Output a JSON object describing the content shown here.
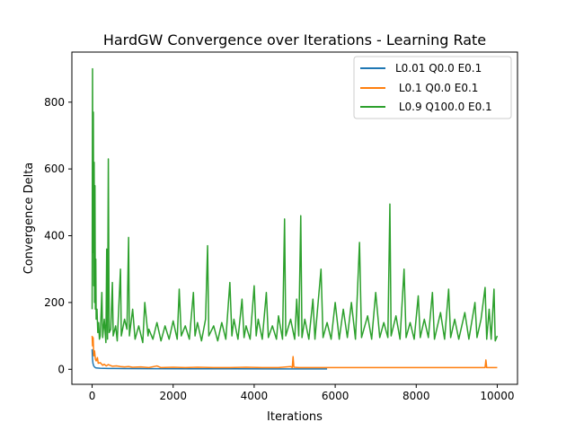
{
  "chart_data": {
    "type": "line",
    "title": "HardGW Convergence over Iterations - Learning Rate",
    "xlabel": "Iterations",
    "ylabel": "Convergence Delta",
    "xlim": [
      -500,
      10500
    ],
    "ylim": [
      -45,
      950
    ],
    "xticks": [
      0,
      2000,
      4000,
      6000,
      8000,
      10000
    ],
    "yticks": [
      0,
      200,
      400,
      600,
      800
    ],
    "xtick_labels": [
      "0",
      "2000",
      "4000",
      "6000",
      "8000",
      "10000"
    ],
    "ytick_labels": [
      "0",
      "200",
      "400",
      "600",
      "800"
    ],
    "grid": false,
    "legend_position": "top-right",
    "series": [
      {
        "name": "L0.01 Q0.0 E0.1",
        "color": "#1f77b4",
        "points": [
          [
            0,
            60
          ],
          [
            10,
            30
          ],
          [
            20,
            18
          ],
          [
            40,
            10
          ],
          [
            60,
            7
          ],
          [
            80,
            5
          ],
          [
            100,
            4
          ],
          [
            200,
            3
          ],
          [
            400,
            2.5
          ],
          [
            800,
            2
          ],
          [
            1500,
            1.8
          ],
          [
            2500,
            1.5
          ],
          [
            3500,
            1.3
          ],
          [
            4500,
            1.2
          ],
          [
            5200,
            1.1
          ],
          [
            5800,
            1
          ]
        ]
      },
      {
        "name": " L0.1 Q0.0 E0.1",
        "color": "#ff7f0e",
        "points": [
          [
            0,
            100
          ],
          [
            10,
            70
          ],
          [
            25,
            95
          ],
          [
            40,
            40
          ],
          [
            60,
            55
          ],
          [
            80,
            30
          ],
          [
            100,
            25
          ],
          [
            130,
            35
          ],
          [
            150,
            18
          ],
          [
            200,
            20
          ],
          [
            260,
            12
          ],
          [
            300,
            15
          ],
          [
            350,
            10
          ],
          [
            400,
            14
          ],
          [
            500,
            9
          ],
          [
            600,
            10
          ],
          [
            700,
            8
          ],
          [
            800,
            7
          ],
          [
            900,
            8
          ],
          [
            1000,
            6
          ],
          [
            1200,
            7
          ],
          [
            1400,
            5
          ],
          [
            1600,
            10
          ],
          [
            1700,
            5
          ],
          [
            2000,
            6
          ],
          [
            2300,
            5
          ],
          [
            2600,
            6
          ],
          [
            3000,
            5
          ],
          [
            3400,
            5
          ],
          [
            3800,
            6
          ],
          [
            4200,
            5
          ],
          [
            4600,
            5
          ],
          [
            4900,
            8
          ],
          [
            4940,
            5
          ],
          [
            4960,
            38
          ],
          [
            4980,
            6
          ],
          [
            5100,
            5
          ],
          [
            5500,
            5
          ],
          [
            6000,
            5
          ],
          [
            6500,
            5
          ],
          [
            7000,
            5
          ],
          [
            7500,
            5
          ],
          [
            8000,
            5
          ],
          [
            8500,
            5
          ],
          [
            9000,
            5
          ],
          [
            9500,
            5
          ],
          [
            9700,
            5
          ],
          [
            9720,
            28
          ],
          [
            9740,
            5
          ],
          [
            10000,
            5
          ]
        ]
      },
      {
        "name": " L0.9 Q100.0 E0.1",
        "color": "#2ca02c",
        "points": [
          [
            0,
            180
          ],
          [
            10,
            900
          ],
          [
            20,
            350
          ],
          [
            30,
            770
          ],
          [
            40,
            250
          ],
          [
            50,
            620
          ],
          [
            60,
            200
          ],
          [
            70,
            550
          ],
          [
            80,
            180
          ],
          [
            90,
            330
          ],
          [
            100,
            150
          ],
          [
            120,
            180
          ],
          [
            140,
            110
          ],
          [
            160,
            140
          ],
          [
            180,
            90
          ],
          [
            200,
            100
          ],
          [
            240,
            230
          ],
          [
            260,
            95
          ],
          [
            300,
            150
          ],
          [
            340,
            80
          ],
          [
            360,
            360
          ],
          [
            380,
            90
          ],
          [
            400,
            630
          ],
          [
            420,
            110
          ],
          [
            460,
            120
          ],
          [
            500,
            260
          ],
          [
            520,
            100
          ],
          [
            580,
            130
          ],
          [
            620,
            85
          ],
          [
            700,
            300
          ],
          [
            720,
            100
          ],
          [
            800,
            150
          ],
          [
            860,
            120
          ],
          [
            900,
            395
          ],
          [
            920,
            100
          ],
          [
            1000,
            180
          ],
          [
            1060,
            90
          ],
          [
            1150,
            130
          ],
          [
            1250,
            80
          ],
          [
            1300,
            200
          ],
          [
            1380,
            100
          ],
          [
            1400,
            120
          ],
          [
            1500,
            90
          ],
          [
            1600,
            140
          ],
          [
            1700,
            85
          ],
          [
            1800,
            130
          ],
          [
            1900,
            90
          ],
          [
            2000,
            145
          ],
          [
            2100,
            90
          ],
          [
            2150,
            240
          ],
          [
            2200,
            100
          ],
          [
            2300,
            130
          ],
          [
            2400,
            90
          ],
          [
            2500,
            230
          ],
          [
            2540,
            100
          ],
          [
            2600,
            140
          ],
          [
            2700,
            85
          ],
          [
            2800,
            150
          ],
          [
            2850,
            370
          ],
          [
            2880,
            100
          ],
          [
            3000,
            130
          ],
          [
            3100,
            85
          ],
          [
            3200,
            140
          ],
          [
            3300,
            90
          ],
          [
            3400,
            260
          ],
          [
            3450,
            100
          ],
          [
            3500,
            150
          ],
          [
            3600,
            90
          ],
          [
            3700,
            210
          ],
          [
            3750,
            95
          ],
          [
            3800,
            130
          ],
          [
            3900,
            90
          ],
          [
            4000,
            250
          ],
          [
            4050,
            100
          ],
          [
            4100,
            150
          ],
          [
            4200,
            90
          ],
          [
            4300,
            230
          ],
          [
            4350,
            95
          ],
          [
            4450,
            130
          ],
          [
            4550,
            90
          ],
          [
            4600,
            160
          ],
          [
            4700,
            90
          ],
          [
            4750,
            450
          ],
          [
            4780,
            100
          ],
          [
            4900,
            150
          ],
          [
            5000,
            90
          ],
          [
            5050,
            210
          ],
          [
            5100,
            100
          ],
          [
            5150,
            460
          ],
          [
            5180,
            95
          ],
          [
            5250,
            150
          ],
          [
            5350,
            90
          ],
          [
            5450,
            210
          ],
          [
            5500,
            90
          ],
          [
            5650,
            300
          ],
          [
            5700,
            95
          ],
          [
            5800,
            140
          ],
          [
            5900,
            90
          ],
          [
            6000,
            200
          ],
          [
            6100,
            90
          ],
          [
            6200,
            180
          ],
          [
            6300,
            95
          ],
          [
            6400,
            200
          ],
          [
            6500,
            90
          ],
          [
            6600,
            380
          ],
          [
            6650,
            95
          ],
          [
            6800,
            160
          ],
          [
            6900,
            90
          ],
          [
            7000,
            230
          ],
          [
            7100,
            95
          ],
          [
            7200,
            140
          ],
          [
            7300,
            95
          ],
          [
            7350,
            495
          ],
          [
            7380,
            100
          ],
          [
            7500,
            160
          ],
          [
            7600,
            90
          ],
          [
            7700,
            300
          ],
          [
            7750,
            95
          ],
          [
            7850,
            140
          ],
          [
            7950,
            90
          ],
          [
            8050,
            220
          ],
          [
            8100,
            95
          ],
          [
            8200,
            150
          ],
          [
            8300,
            95
          ],
          [
            8400,
            230
          ],
          [
            8450,
            90
          ],
          [
            8600,
            170
          ],
          [
            8700,
            90
          ],
          [
            8800,
            240
          ],
          [
            8850,
            95
          ],
          [
            8950,
            150
          ],
          [
            9050,
            90
          ],
          [
            9200,
            170
          ],
          [
            9300,
            90
          ],
          [
            9450,
            200
          ],
          [
            9500,
            95
          ],
          [
            9600,
            150
          ],
          [
            9700,
            245
          ],
          [
            9740,
            90
          ],
          [
            9800,
            180
          ],
          [
            9850,
            90
          ],
          [
            9920,
            240
          ],
          [
            9950,
            85
          ],
          [
            10000,
            100
          ]
        ]
      }
    ]
  }
}
